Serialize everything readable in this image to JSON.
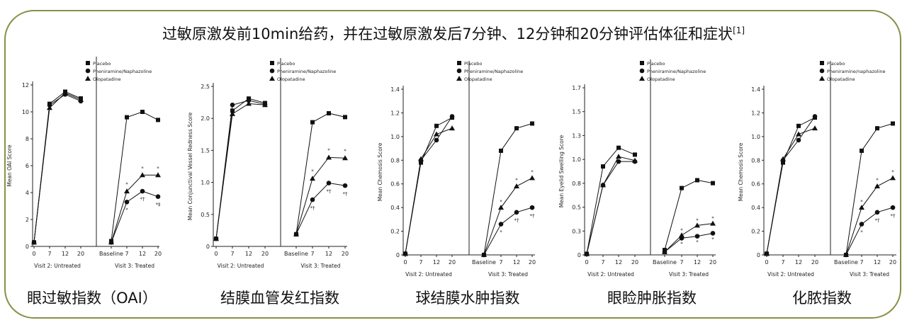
{
  "title": "过敏原激发前10min给药，并在过敏原激发后7分钟、12分钟和20分钟评估体征和症状",
  "title_ref": "[1]",
  "chart_data": [
    {
      "type": "line",
      "caption": "眼过敏指数（OAI）",
      "ylabel": "Mean OAI Score",
      "ylim": [
        0,
        12
      ],
      "yticks": [
        "0",
        "2",
        "4",
        "6",
        "8",
        "10",
        "12"
      ],
      "group1": {
        "label": "Visit 2: Untreated",
        "ticks": [
          "0",
          "7",
          "12",
          "20"
        ]
      },
      "group2": {
        "label": "Visit 3: Treated",
        "ticks": [
          "Baseline",
          "7",
          "12",
          "20"
        ]
      },
      "legend": [
        "Placebo",
        "Pheniramine/Naphazoline",
        "Olopatadine"
      ],
      "series": [
        {
          "name": "Placebo",
          "marker": "square",
          "untreated": [
            0.3,
            10.6,
            11.5,
            11.0
          ],
          "treated": [
            0.4,
            9.6,
            10.0,
            9.4
          ]
        },
        {
          "name": "Pheniramine/Naphazoline",
          "marker": "circle",
          "untreated": [
            0.3,
            10.5,
            11.3,
            10.8
          ],
          "treated": [
            0.3,
            3.3,
            4.1,
            3.7
          ]
        },
        {
          "name": "Olopatadine",
          "marker": "triangle",
          "untreated": [
            0.3,
            10.3,
            11.4,
            10.9
          ],
          "treated": [
            0.3,
            4.1,
            5.3,
            5.3
          ]
        }
      ],
      "annotations": [
        {
          "text": "*",
          "x": 7,
          "y": 4.6
        },
        {
          "text": "*",
          "x": 12,
          "y": 5.8
        },
        {
          "text": "*",
          "x": 20,
          "y": 5.8
        },
        {
          "text": "*",
          "x": 7,
          "y": 2.7
        },
        {
          "text": "*†",
          "x": 12,
          "y": 3.5
        },
        {
          "text": "*‡",
          "x": 20,
          "y": 3.1
        }
      ]
    },
    {
      "type": "line",
      "caption": "结膜血管发红指数",
      "ylabel": "Mean Conjunctival Vessel Redness Score",
      "ylim": [
        0,
        2.5
      ],
      "yticks": [
        "0",
        "0.5",
        "1.0",
        "1.5",
        "2.0",
        "2.5"
      ],
      "group1": {
        "label": "Visit 2: Untreated",
        "ticks": [
          "0",
          "7",
          "12",
          "20"
        ]
      },
      "group2": {
        "label": "Visit 3: Treated",
        "ticks": [
          "Baseline",
          "7",
          "12",
          "20"
        ]
      },
      "legend": [
        "Placebo",
        "Pheniramine/Naphazoline",
        "Olopatadine"
      ],
      "series": [
        {
          "name": "Placebo",
          "marker": "square",
          "untreated": [
            0.12,
            2.12,
            2.31,
            2.24
          ],
          "treated": [
            0.19,
            1.94,
            2.08,
            2.02
          ]
        },
        {
          "name": "Pheniramine/Naphazoline",
          "marker": "circle",
          "untreated": [
            0.12,
            2.21,
            2.28,
            2.22
          ],
          "treated": [
            0.19,
            0.73,
            0.99,
            0.95
          ]
        },
        {
          "name": "Olopatadine",
          "marker": "triangle",
          "untreated": [
            0.12,
            2.07,
            2.23,
            2.21
          ],
          "treated": [
            0.19,
            1.06,
            1.39,
            1.38
          ]
        }
      ],
      "annotations": [
        {
          "text": "*",
          "x": 7,
          "y": 1.17
        },
        {
          "text": "*",
          "x": 12,
          "y": 1.5
        },
        {
          "text": "*",
          "x": 20,
          "y": 1.49
        },
        {
          "text": "*†",
          "x": 7,
          "y": 0.6
        },
        {
          "text": "*†",
          "x": 12,
          "y": 0.86
        },
        {
          "text": "*†",
          "x": 20,
          "y": 0.82
        }
      ]
    },
    {
      "type": "line",
      "caption": "球结膜水肿指数",
      "ylabel": "Mean Chemosis Score",
      "ylim": [
        0,
        1.4
      ],
      "yticks": [
        "0",
        "0.2",
        "0.4",
        "0.6",
        "0.8",
        "1.0",
        "1.2",
        "1.4"
      ],
      "group1": {
        "label": "Visit 2: Untreated",
        "ticks": [
          "0",
          "7",
          "12",
          "20"
        ]
      },
      "group2": {
        "label": "Visit 3: Treated",
        "ticks": [
          "Baseline",
          "7",
          "12",
          "20"
        ]
      },
      "legend": [
        "Placebo",
        "Pheniramine/Naphazoline",
        "Olopatadine"
      ],
      "series": [
        {
          "name": "Placebo",
          "marker": "square",
          "untreated": [
            0.01,
            0.78,
            1.09,
            1.16
          ],
          "treated": [
            0.0,
            0.88,
            1.07,
            1.11
          ]
        },
        {
          "name": "Pheniramine/Naphazoline",
          "marker": "circle",
          "untreated": [
            0.01,
            0.8,
            0.97,
            1.17
          ],
          "treated": [
            0.0,
            0.26,
            0.36,
            0.4
          ]
        },
        {
          "name": "Olopatadine",
          "marker": "triangle",
          "untreated": [
            0.01,
            0.81,
            1.02,
            1.07
          ],
          "treated": [
            0.0,
            0.4,
            0.58,
            0.65
          ]
        }
      ],
      "annotations": [
        {
          "text": "*",
          "x": 7,
          "y": 0.45
        },
        {
          "text": "*",
          "x": 12,
          "y": 0.63
        },
        {
          "text": "*",
          "x": 20,
          "y": 0.7
        },
        {
          "text": "*",
          "x": 7,
          "y": 0.19
        },
        {
          "text": "*†",
          "x": 12,
          "y": 0.29
        },
        {
          "text": "*†",
          "x": 20,
          "y": 0.33
        }
      ]
    },
    {
      "type": "line",
      "caption": "眼睑肿胀指数",
      "ylabel": "Mean Eyelid Swelling Score",
      "ylim": [
        0,
        1.7
      ],
      "yticks": [
        "0",
        "0.3",
        "0.5",
        "0.8",
        "1.0",
        "1.3",
        "1.5",
        "1.7"
      ],
      "group1": {
        "label": "Visit 2: Untreated",
        "ticks": [
          "0",
          "7",
          "12",
          "20"
        ]
      },
      "group2": {
        "label": "Visit 3: Treated",
        "ticks": [
          "Baseline",
          "7",
          "12",
          "20"
        ]
      },
      "legend": [
        "Placebo",
        "Pheniramine/Naphazoline",
        "Olopatadine"
      ],
      "series": [
        {
          "name": "Placebo",
          "marker": "square",
          "untreated": [
            0.01,
            0.9,
            1.09,
            1.02
          ],
          "treated": [
            0.05,
            0.68,
            0.76,
            0.73
          ]
        },
        {
          "name": "Pheniramine/Naphazoline",
          "marker": "circle",
          "untreated": [
            0.01,
            0.71,
            0.95,
            0.95
          ],
          "treated": [
            0.03,
            0.17,
            0.19,
            0.22
          ]
        },
        {
          "name": "Olopatadine",
          "marker": "triangle",
          "untreated": [
            0.01,
            0.71,
            1.0,
            0.96
          ],
          "treated": [
            0.03,
            0.2,
            0.3,
            0.32
          ]
        }
      ],
      "annotations": [
        {
          "text": "*",
          "x": 7,
          "y": 0.25
        },
        {
          "text": "*",
          "x": 12,
          "y": 0.35
        },
        {
          "text": "*",
          "x": 20,
          "y": 0.37
        },
        {
          "text": "*",
          "x": 7,
          "y": 0.11
        },
        {
          "text": "*",
          "x": 12,
          "y": 0.13
        },
        {
          "text": "*",
          "x": 20,
          "y": 0.16
        }
      ]
    },
    {
      "type": "line",
      "caption": "化脓指数",
      "ylabel": "Mean Chemosis Score",
      "ylim": [
        0,
        1.4
      ],
      "yticks": [
        "0",
        "0.2",
        "0.4",
        "0.6",
        "0.8",
        "1.0",
        "1.2",
        "1.4"
      ],
      "group1": {
        "label": "Visit 2: Untreated",
        "ticks": [
          "0",
          "7",
          "12",
          "20"
        ]
      },
      "group2": {
        "label": "Visit 3: Treated",
        "ticks": [
          "Baseline",
          "7",
          "12",
          "20"
        ]
      },
      "legend": [
        "Placebo",
        "Pheniramine/naphazoline",
        "Olopatadine"
      ],
      "series": [
        {
          "name": "Placebo",
          "marker": "square",
          "untreated": [
            0.01,
            0.78,
            1.09,
            1.16
          ],
          "treated": [
            0.0,
            0.88,
            1.07,
            1.11
          ]
        },
        {
          "name": "Pheniramine/naphazoline",
          "marker": "circle",
          "untreated": [
            0.01,
            0.8,
            0.97,
            1.17
          ],
          "treated": [
            0.0,
            0.26,
            0.36,
            0.4
          ]
        },
        {
          "name": "Olopatadine",
          "marker": "triangle",
          "untreated": [
            0.01,
            0.81,
            1.02,
            1.07
          ],
          "treated": [
            0.0,
            0.4,
            0.58,
            0.65
          ]
        }
      ],
      "annotations": [
        {
          "text": "*",
          "x": 7,
          "y": 0.45
        },
        {
          "text": "*",
          "x": 12,
          "y": 0.63
        },
        {
          "text": "*",
          "x": 20,
          "y": 0.7
        },
        {
          "text": "*",
          "x": 7,
          "y": 0.19
        },
        {
          "text": "*†",
          "x": 12,
          "y": 0.29
        },
        {
          "text": "*†",
          "x": 20,
          "y": 0.33
        }
      ]
    }
  ]
}
